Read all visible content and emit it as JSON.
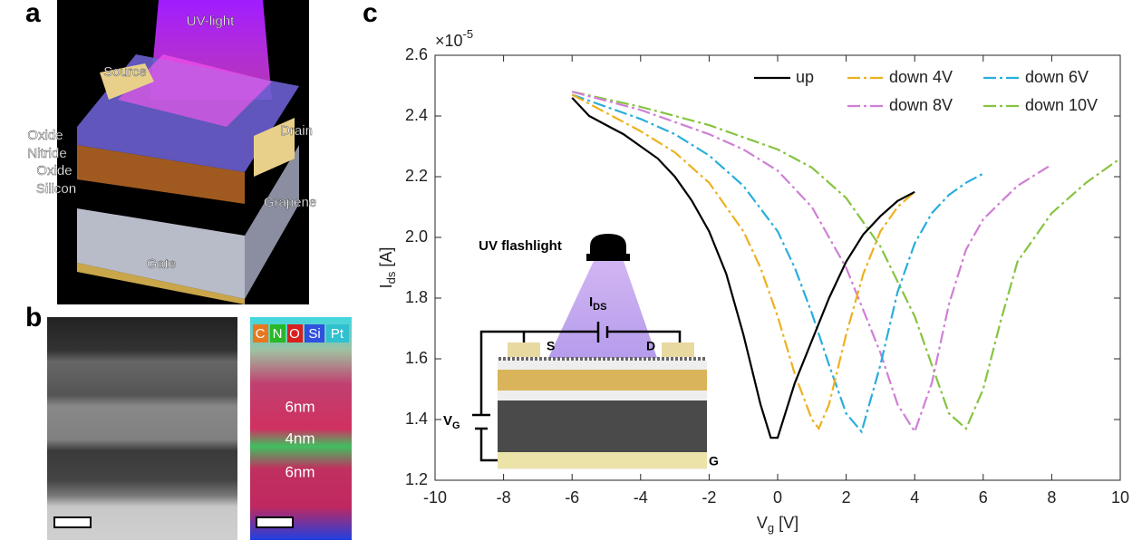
{
  "panels": {
    "a": "a",
    "b": "b",
    "c": "c"
  },
  "figure_a": {
    "beam": "UV-light",
    "source": "Source",
    "drain": "Drain",
    "layers": [
      "Oxide",
      "Nitride",
      "Oxide",
      "Silicon"
    ],
    "graphene": "Grapene",
    "gate": "Gate"
  },
  "figure_b": {
    "elements": [
      "C",
      "N",
      "O",
      "Si",
      "Pt"
    ],
    "thicknesses": [
      "6nm",
      "4nm",
      "6nm"
    ]
  },
  "inset": {
    "light": "UV flashlight",
    "current": "I",
    "current_sub": "DS",
    "source": "S",
    "drain": "D",
    "gate_voltage": "V",
    "gate_voltage_sub": "G",
    "gate": "G"
  },
  "chart_data": {
    "type": "line",
    "xlabel": "V",
    "xlabel_sub": "g",
    "xlabel_unit": "[V]",
    "ylabel": "I",
    "ylabel_sub": "ds",
    "ylabel_unit": "[A]",
    "y_exponent_base": "×10",
    "y_exponent": "-5",
    "xlim": [
      -10,
      10
    ],
    "xticks": [
      -10,
      -8,
      -6,
      -4,
      -2,
      0,
      2,
      4,
      6,
      8,
      10
    ],
    "ylim": [
      1.2,
      2.6
    ],
    "yticks": [
      1.2,
      1.4,
      1.6,
      1.8,
      2.0,
      2.2,
      2.4,
      2.6
    ],
    "grid": false,
    "series": [
      {
        "name": "up",
        "color": "#000000",
        "style": "solid",
        "x": [
          -6,
          -5.5,
          -5,
          -4.5,
          -4,
          -3.5,
          -3,
          -2.5,
          -2,
          -1.5,
          -1,
          -0.5,
          -0.2,
          0,
          0.5,
          1,
          1.5,
          2,
          2.5,
          3,
          3.5,
          4
        ],
        "values": [
          2.46,
          2.4,
          2.37,
          2.34,
          2.3,
          2.26,
          2.2,
          2.12,
          2.02,
          1.88,
          1.68,
          1.45,
          1.34,
          1.34,
          1.52,
          1.66,
          1.8,
          1.92,
          2.01,
          2.07,
          2.12,
          2.15
        ]
      },
      {
        "name": "down 4V",
        "color": "#EDB120",
        "style": "dashdot",
        "x": [
          -6,
          -5,
          -4,
          -3,
          -2,
          -1,
          -0.5,
          0,
          0.5,
          1,
          1.2,
          1.5,
          2,
          2.5,
          3,
          3.5,
          4
        ],
        "values": [
          2.47,
          2.41,
          2.35,
          2.28,
          2.18,
          2.02,
          1.9,
          1.74,
          1.55,
          1.4,
          1.37,
          1.45,
          1.68,
          1.88,
          2.02,
          2.1,
          2.15
        ]
      },
      {
        "name": "down 6V",
        "color": "#29AEDB",
        "style": "dashdot",
        "x": [
          -6,
          -5,
          -4,
          -3,
          -2,
          -1,
          0,
          0.5,
          1,
          1.5,
          2,
          2.45,
          3,
          3.5,
          4,
          4.5,
          5,
          5.5,
          6
        ],
        "values": [
          2.47,
          2.43,
          2.39,
          2.34,
          2.27,
          2.17,
          2.02,
          1.9,
          1.75,
          1.58,
          1.42,
          1.36,
          1.58,
          1.82,
          1.98,
          2.08,
          2.14,
          2.18,
          2.21
        ]
      },
      {
        "name": "down 8V",
        "color": "#CF7FD6",
        "style": "dashdot",
        "x": [
          -6,
          -4,
          -2,
          -1,
          0,
          1,
          2,
          3,
          3.5,
          4,
          4.5,
          5,
          5.5,
          6,
          7,
          8
        ],
        "values": [
          2.48,
          2.42,
          2.34,
          2.29,
          2.22,
          2.1,
          1.9,
          1.62,
          1.45,
          1.36,
          1.52,
          1.78,
          1.96,
          2.06,
          2.17,
          2.24
        ]
      },
      {
        "name": "down 10V",
        "color": "#86C440",
        "style": "dashdot",
        "x": [
          -6,
          -4,
          -2,
          0,
          1,
          2,
          3,
          4,
          4.5,
          5,
          5.5,
          6,
          6.5,
          7,
          8,
          9,
          10
        ],
        "values": [
          2.48,
          2.43,
          2.37,
          2.29,
          2.23,
          2.13,
          1.97,
          1.74,
          1.58,
          1.42,
          1.37,
          1.5,
          1.72,
          1.92,
          2.08,
          2.18,
          2.26
        ]
      }
    ]
  }
}
